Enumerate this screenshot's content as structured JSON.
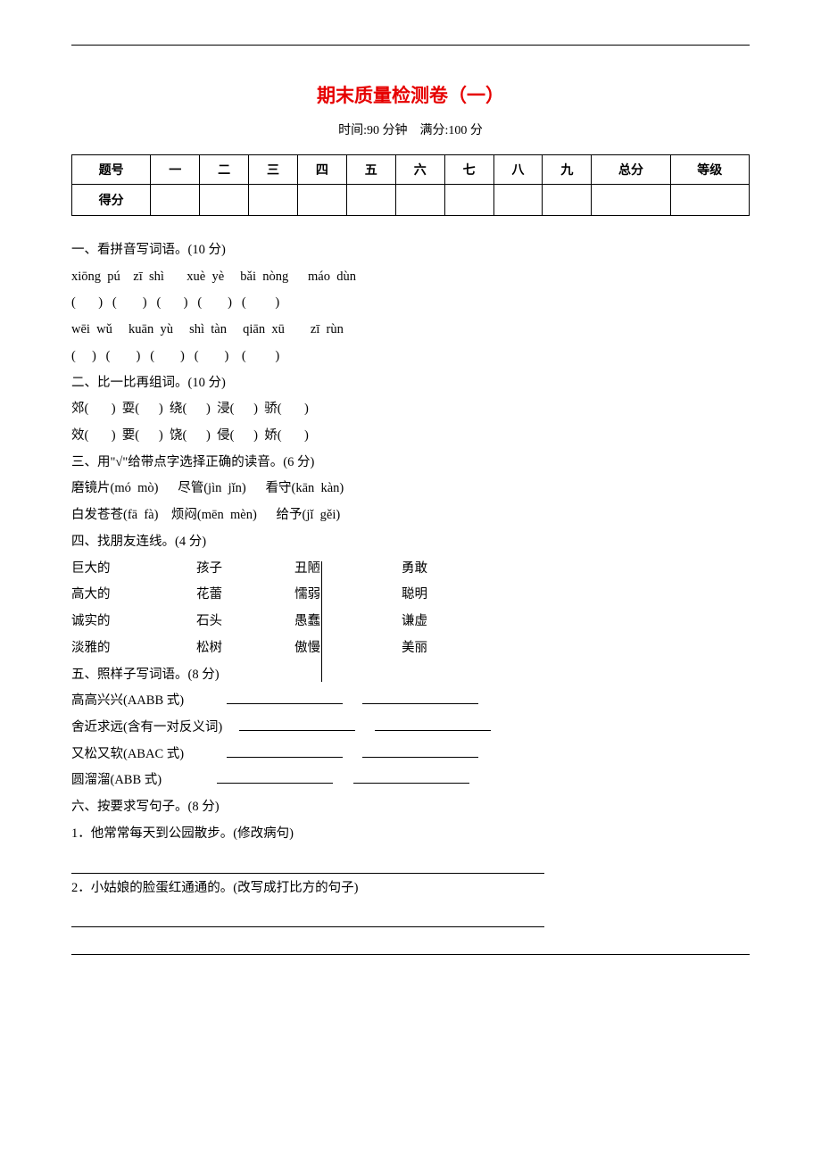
{
  "title": "期末质量检测卷（一）",
  "subtitle": "时间:90 分钟　满分:100 分",
  "score_table": {
    "headers": [
      "题号",
      "一",
      "二",
      "三",
      "四",
      "五",
      "六",
      "七",
      "八",
      "九",
      "总分",
      "等级"
    ],
    "second_row_label": "得分"
  },
  "q1": {
    "heading": "一、看拼音写词语。(10 分)",
    "row1_pinyin": "xiōng  pú    zī  shì       xuè  yè     bǎi  nòng      máo  dùn",
    "row1_paren": "(       )   (        )   (       )   (        )   (         )",
    "row2_pinyin": "wēi  wǔ     kuān  yù     shì  tàn     qiān  xū        zī  rùn",
    "row2_paren": "(     )   (        )   (        )   (        )    (         )"
  },
  "q2": {
    "heading": "二、比一比再组词。(10 分)",
    "row1": "郊(       )  耍(      )  绕(      )  浸(      )  骄(       )",
    "row2": "效(       )  要(      )  饶(      )  侵(      )  娇(       )"
  },
  "q3": {
    "heading": "三、用\"√\"给带点字选择正确的读音。(6 分)",
    "row1": "磨镜片(mó  mò)      尽管(jìn  jǐn)      看守(kān  kàn)",
    "row2": "白发苍苍(fā  fà)    烦闷(mēn  mèn)      给予(jǐ  gěi)"
  },
  "q4": {
    "heading": "四、找朋友连线。(4 分)",
    "rows": [
      [
        "巨大的",
        "孩子",
        "丑陋",
        "勇敢"
      ],
      [
        "高大的",
        "花蕾",
        "懦弱",
        "聪明"
      ],
      [
        "诚实的",
        "石头",
        "愚蠢",
        "谦虚"
      ],
      [
        "淡雅的",
        "松树",
        "傲慢",
        "美丽"
      ]
    ]
  },
  "q5": {
    "heading": "五、照样子写词语。(8 分)",
    "items": [
      "高高兴兴(AABB 式)",
      "舍近求远(含有一对反义词)",
      "又松又软(ABAC 式)",
      "圆溜溜(ABB 式)"
    ]
  },
  "q6": {
    "heading": "六、按要求写句子。(8 分)",
    "items": [
      "1．他常常每天到公园散步。(修改病句)",
      "2．小姑娘的脸蛋红通通的。(改写成打比方的句子)"
    ]
  },
  "style": {
    "title_color": "#e60000",
    "text_color": "#000000",
    "background": "#ffffff",
    "title_fontsize": 21,
    "body_fontsize": 14.5,
    "line_height": 2.05
  }
}
